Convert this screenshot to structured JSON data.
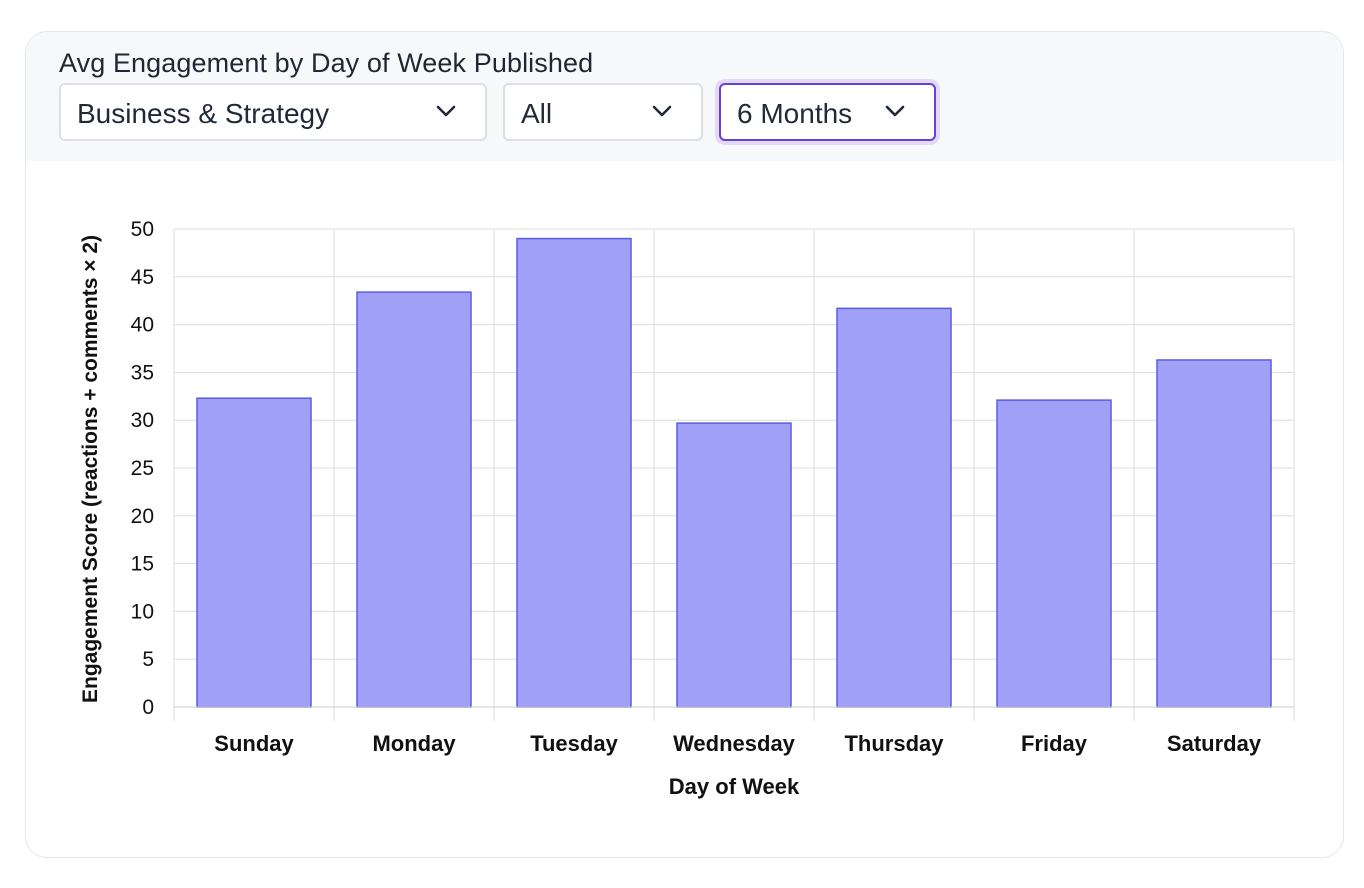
{
  "header": {
    "title": "Avg Engagement by Day of Week Published"
  },
  "filters": {
    "category": {
      "value": "Business & Strategy",
      "icon": "chevron-down-icon"
    },
    "type": {
      "value": "All",
      "icon": "chevron-down-icon"
    },
    "period": {
      "value": "6 Months",
      "icon": "chevron-down-icon",
      "focused": true
    }
  },
  "colors": {
    "bar_fill": "#a0a1f6",
    "bar_stroke": "#5b5de0",
    "grid": "#dddddd",
    "focus": "#6b3fd6"
  },
  "chart_data": {
    "type": "bar",
    "categories": [
      "Sunday",
      "Monday",
      "Tuesday",
      "Wednesday",
      "Thursday",
      "Friday",
      "Saturday"
    ],
    "values": [
      32.3,
      43.4,
      49.0,
      29.7,
      41.7,
      32.1,
      36.3
    ],
    "xlabel": "Day of Week",
    "ylabel": "Engagement Score (reactions + comments × 2)",
    "ylim": [
      0,
      50
    ],
    "yticks": [
      0,
      5,
      10,
      15,
      20,
      25,
      30,
      35,
      40,
      45,
      50
    ],
    "grid": true,
    "legend": "none"
  }
}
